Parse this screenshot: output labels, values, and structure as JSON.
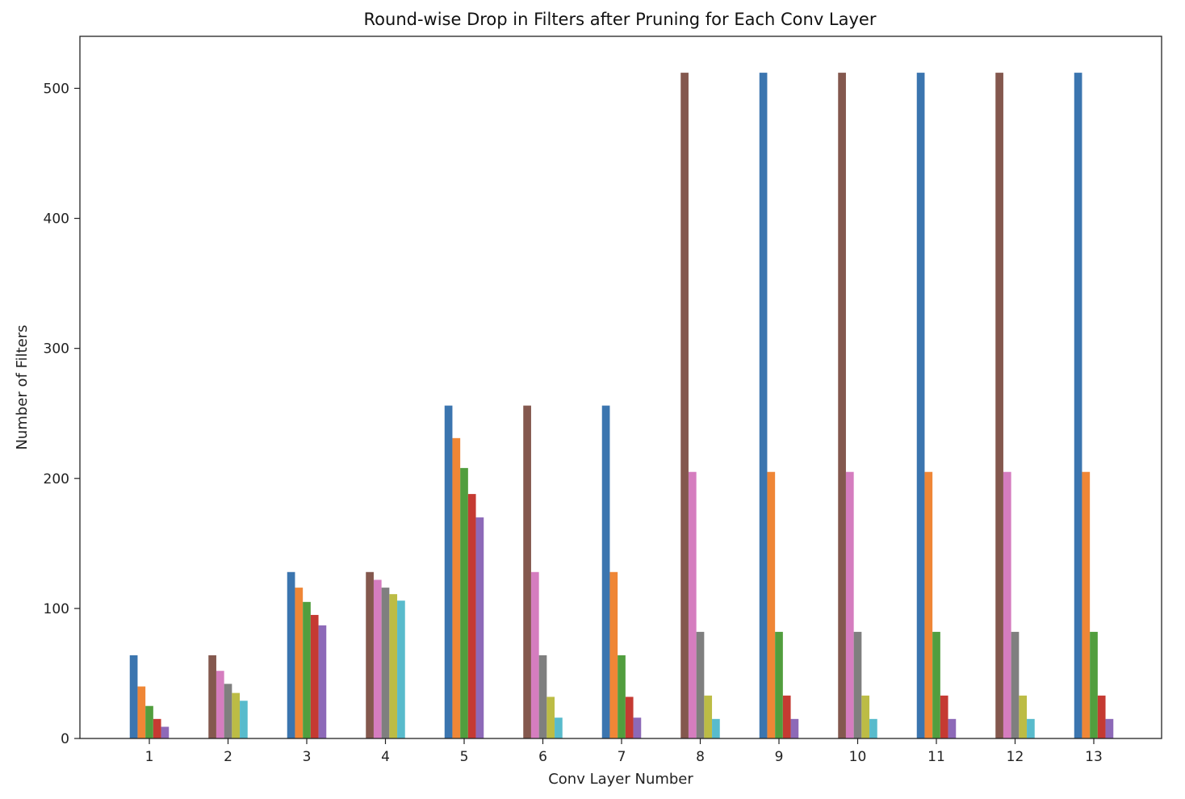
{
  "chart_data": {
    "type": "bar",
    "title": "Round-wise Drop in Filters after Pruning for Each Conv Layer",
    "xlabel": "Conv Layer Number",
    "ylabel": "Number of Filters",
    "ylim": [
      0,
      540
    ],
    "y_ticks": [
      0,
      100,
      200,
      300,
      400,
      500
    ],
    "grid": false,
    "legend": "none",
    "categories": [
      "1",
      "2",
      "3",
      "4",
      "5",
      "6",
      "7",
      "8",
      "9",
      "10",
      "11",
      "12",
      "13"
    ],
    "groups": [
      {
        "category": "1",
        "bars": [
          {
            "value": 64,
            "color": "#3b75af"
          },
          {
            "value": 40,
            "color": "#ef8636"
          },
          {
            "value": 25,
            "color": "#519e3e"
          },
          {
            "value": 15,
            "color": "#c53a32"
          },
          {
            "value": 9,
            "color": "#8d69b8"
          }
        ]
      },
      {
        "category": "2",
        "bars": [
          {
            "value": 64,
            "color": "#84584e"
          },
          {
            "value": 52,
            "color": "#d57dbf"
          },
          {
            "value": 42,
            "color": "#7f7f7f"
          },
          {
            "value": 35,
            "color": "#bcbc45"
          },
          {
            "value": 29,
            "color": "#58bbcc"
          }
        ]
      },
      {
        "category": "3",
        "bars": [
          {
            "value": 128,
            "color": "#3b75af"
          },
          {
            "value": 116,
            "color": "#ef8636"
          },
          {
            "value": 105,
            "color": "#519e3e"
          },
          {
            "value": 95,
            "color": "#c53a32"
          },
          {
            "value": 87,
            "color": "#8d69b8"
          }
        ]
      },
      {
        "category": "4",
        "bars": [
          {
            "value": 128,
            "color": "#84584e"
          },
          {
            "value": 122,
            "color": "#d57dbf"
          },
          {
            "value": 116,
            "color": "#7f7f7f"
          },
          {
            "value": 111,
            "color": "#bcbc45"
          },
          {
            "value": 106,
            "color": "#58bbcc"
          }
        ]
      },
      {
        "category": "5",
        "bars": [
          {
            "value": 256,
            "color": "#3b75af"
          },
          {
            "value": 231,
            "color": "#ef8636"
          },
          {
            "value": 208,
            "color": "#519e3e"
          },
          {
            "value": 188,
            "color": "#c53a32"
          },
          {
            "value": 170,
            "color": "#8d69b8"
          }
        ]
      },
      {
        "category": "6",
        "bars": [
          {
            "value": 256,
            "color": "#84584e"
          },
          {
            "value": 128,
            "color": "#d57dbf"
          },
          {
            "value": 64,
            "color": "#7f7f7f"
          },
          {
            "value": 32,
            "color": "#bcbc45"
          },
          {
            "value": 16,
            "color": "#58bbcc"
          }
        ]
      },
      {
        "category": "7",
        "bars": [
          {
            "value": 256,
            "color": "#3b75af"
          },
          {
            "value": 128,
            "color": "#ef8636"
          },
          {
            "value": 64,
            "color": "#519e3e"
          },
          {
            "value": 32,
            "color": "#c53a32"
          },
          {
            "value": 16,
            "color": "#8d69b8"
          }
        ]
      },
      {
        "category": "8",
        "bars": [
          {
            "value": 512,
            "color": "#84584e"
          },
          {
            "value": 205,
            "color": "#d57dbf"
          },
          {
            "value": 82,
            "color": "#7f7f7f"
          },
          {
            "value": 33,
            "color": "#bcbc45"
          },
          {
            "value": 15,
            "color": "#58bbcc"
          }
        ]
      },
      {
        "category": "9",
        "bars": [
          {
            "value": 512,
            "color": "#3b75af"
          },
          {
            "value": 205,
            "color": "#ef8636"
          },
          {
            "value": 82,
            "color": "#519e3e"
          },
          {
            "value": 33,
            "color": "#c53a32"
          },
          {
            "value": 15,
            "color": "#8d69b8"
          }
        ]
      },
      {
        "category": "10",
        "bars": [
          {
            "value": 512,
            "color": "#84584e"
          },
          {
            "value": 205,
            "color": "#d57dbf"
          },
          {
            "value": 82,
            "color": "#7f7f7f"
          },
          {
            "value": 33,
            "color": "#bcbc45"
          },
          {
            "value": 15,
            "color": "#58bbcc"
          }
        ]
      },
      {
        "category": "11",
        "bars": [
          {
            "value": 512,
            "color": "#3b75af"
          },
          {
            "value": 205,
            "color": "#ef8636"
          },
          {
            "value": 82,
            "color": "#519e3e"
          },
          {
            "value": 33,
            "color": "#c53a32"
          },
          {
            "value": 15,
            "color": "#8d69b8"
          }
        ]
      },
      {
        "category": "12",
        "bars": [
          {
            "value": 512,
            "color": "#84584e"
          },
          {
            "value": 205,
            "color": "#d57dbf"
          },
          {
            "value": 82,
            "color": "#7f7f7f"
          },
          {
            "value": 33,
            "color": "#bcbc45"
          },
          {
            "value": 15,
            "color": "#58bbcc"
          }
        ]
      },
      {
        "category": "13",
        "bars": [
          {
            "value": 512,
            "color": "#3b75af"
          },
          {
            "value": 205,
            "color": "#ef8636"
          },
          {
            "value": 82,
            "color": "#519e3e"
          },
          {
            "value": 33,
            "color": "#c53a32"
          },
          {
            "value": 15,
            "color": "#8d69b8"
          }
        ]
      }
    ]
  }
}
